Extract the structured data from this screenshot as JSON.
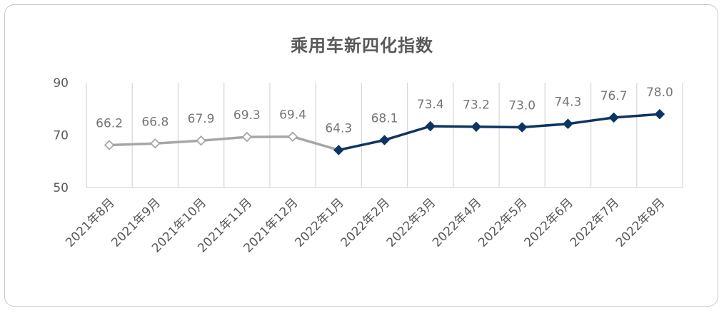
{
  "chart_data": {
    "type": "line",
    "title": "乘用车新四化指数",
    "categories": [
      "2021年8月",
      "2021年9月",
      "2021年10月",
      "2021年11月",
      "2021年12月",
      "2022年1月",
      "2022年2月",
      "2022年3月",
      "2022年4月",
      "2022年5月",
      "2022年6月",
      "2022年7月",
      "2022年8月"
    ],
    "values": [
      66.2,
      66.8,
      67.9,
      69.3,
      69.4,
      64.3,
      68.1,
      73.4,
      73.2,
      73.0,
      74.3,
      76.7,
      78.0
    ],
    "data_labels": [
      "66.2",
      "66.8",
      "67.9",
      "69.3",
      "69.4",
      "64.3",
      "68.1",
      "73.4",
      "73.2",
      "73.0",
      "74.3",
      "76.7",
      "78.0"
    ],
    "y_ticks": [
      "50",
      "70",
      "90"
    ],
    "ylim": [
      50,
      90
    ],
    "grid": "vertical",
    "legend": "none",
    "series_segments": [
      {
        "from_index": 0,
        "to_index": 5,
        "color": "#a6a6a6",
        "marker_fill": "#ffffff"
      },
      {
        "from_index": 5,
        "to_index": 12,
        "color": "#0d3563",
        "marker_fill": "#0d3563"
      }
    ]
  }
}
